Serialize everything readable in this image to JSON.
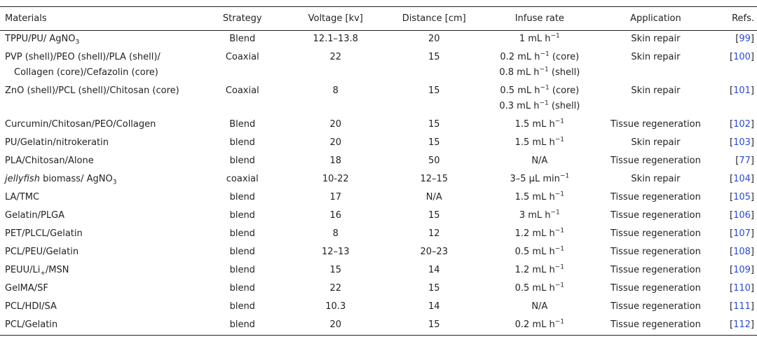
{
  "table": {
    "headers": {
      "materials": "Materials",
      "strategy": "Strategy",
      "voltage": "Voltage [kv]",
      "distance": "Distance [cm]",
      "infuse": "Infuse rate",
      "application": "Application",
      "refs": "Refs."
    },
    "rows": [
      {
        "materials": "TPPU/PU/ AgNO",
        "materials_sub": "3",
        "strategy": "Blend",
        "voltage": "12.1–13.8",
        "distance": "20",
        "infuse": "1 mL h",
        "infuse_sup": "−1",
        "infuse2": "",
        "infuse2_sup": "",
        "application": "Skin repair",
        "ref": "99"
      },
      {
        "materials": "PVP (shell)/PEO (shell)/PLA (shell)/",
        "materials2": "Collagen (core)/Cefazolin (core)",
        "strategy": "Coaxial",
        "voltage": "22",
        "distance": "15",
        "infuse": "0.2 mL h",
        "infuse_sup": "−1",
        "infuse_suffix": " (core)",
        "infuse2": "0.8 mL h",
        "infuse2_sup": "−1",
        "infuse2_suffix": " (shell)",
        "application": "Skin repair",
        "ref": "100"
      },
      {
        "materials": "ZnO (shell)/PCL (shell)/Chitosan (core)",
        "strategy": "Coaxial",
        "voltage": "8",
        "distance": "15",
        "infuse": "0.5 mL h",
        "infuse_sup": "−1",
        "infuse_suffix": " (core)",
        "infuse2": "0.3 mL h",
        "infuse2_sup": "−1",
        "infuse2_suffix": " (shell)",
        "application": "Skin repair",
        "ref": "101"
      },
      {
        "materials": "Curcumin/Chitosan/PEO/Collagen",
        "strategy": "Blend",
        "voltage": "20",
        "distance": "15",
        "infuse": "1.5 mL h",
        "infuse_sup": "−1",
        "application": "Tissue regeneration",
        "ref": "102"
      },
      {
        "materials": "PU/Gelatin/nitrokeratin",
        "strategy": "blend",
        "voltage": "20",
        "distance": "15",
        "infuse": "1.5 mL h",
        "infuse_sup": "−1",
        "application": "Skin repair",
        "ref": "103"
      },
      {
        "materials": "PLA/Chitosan/Alone",
        "strategy": "blend",
        "voltage": "18",
        "distance": "50",
        "infuse": "N/A",
        "application": "Tissue regeneration",
        "ref": "77"
      },
      {
        "materials_italic": "jellyfish",
        "materials": " biomass/ AgNO",
        "materials_sub": "3",
        "strategy": "coaxial",
        "voltage": "10-22",
        "distance": "12–15",
        "infuse": "3–5 µL min",
        "infuse_sup": "−1",
        "application": "Skin repair",
        "ref": "104"
      },
      {
        "materials": "LA/TMC",
        "strategy": "blend",
        "voltage": "17",
        "distance": "N/A",
        "infuse": "1.5 mL h",
        "infuse_sup": "−1",
        "application": "Tissue regeneration",
        "ref": "105"
      },
      {
        "materials": "Gelatin/PLGA",
        "strategy": "blend",
        "voltage": "16",
        "distance": "15",
        "infuse": "3 mL h",
        "infuse_sup": "−1",
        "application": "Tissue regeneration",
        "ref": "106"
      },
      {
        "materials": "PET/PLCL/Gelatin",
        "strategy": "blend",
        "voltage": "8",
        "distance": "12",
        "infuse": "1.2 mL h",
        "infuse_sup": "−1",
        "application": "Tissue regeneration",
        "ref": "107"
      },
      {
        "materials": "PCL/PEU/Gelatin",
        "strategy": "blend",
        "voltage": "12–13",
        "distance": "20–23",
        "infuse": "0.5 mL h",
        "infuse_sup": "−1",
        "application": "Tissue regeneration",
        "ref": "108"
      },
      {
        "materials": "PEUU/Li",
        "materials_sub": "+",
        "materials_tail": "/MSN",
        "strategy": "blend",
        "voltage": "15",
        "distance": "14",
        "infuse": "1.2 mL h",
        "infuse_sup": "−1",
        "application": "Tissue regeneration",
        "ref": "109"
      },
      {
        "materials": "GelMA/SF",
        "strategy": "blend",
        "voltage": "22",
        "distance": "15",
        "infuse": "0.5 mL h",
        "infuse_sup": "−1",
        "application": "Tissue regeneration",
        "ref": "110"
      },
      {
        "materials": "PCL/HDI/SA",
        "strategy": "blend",
        "voltage": "10.3",
        "distance": "14",
        "infuse": "N/A",
        "application": "Tissue regeneration",
        "ref": "111"
      },
      {
        "materials": "PCL/Gelatin",
        "strategy": "blend",
        "voltage": "20",
        "distance": "15",
        "infuse": "0.2 mL h",
        "infuse_sup": "−1",
        "application": "Tissue regeneration",
        "ref": "112"
      }
    ]
  }
}
